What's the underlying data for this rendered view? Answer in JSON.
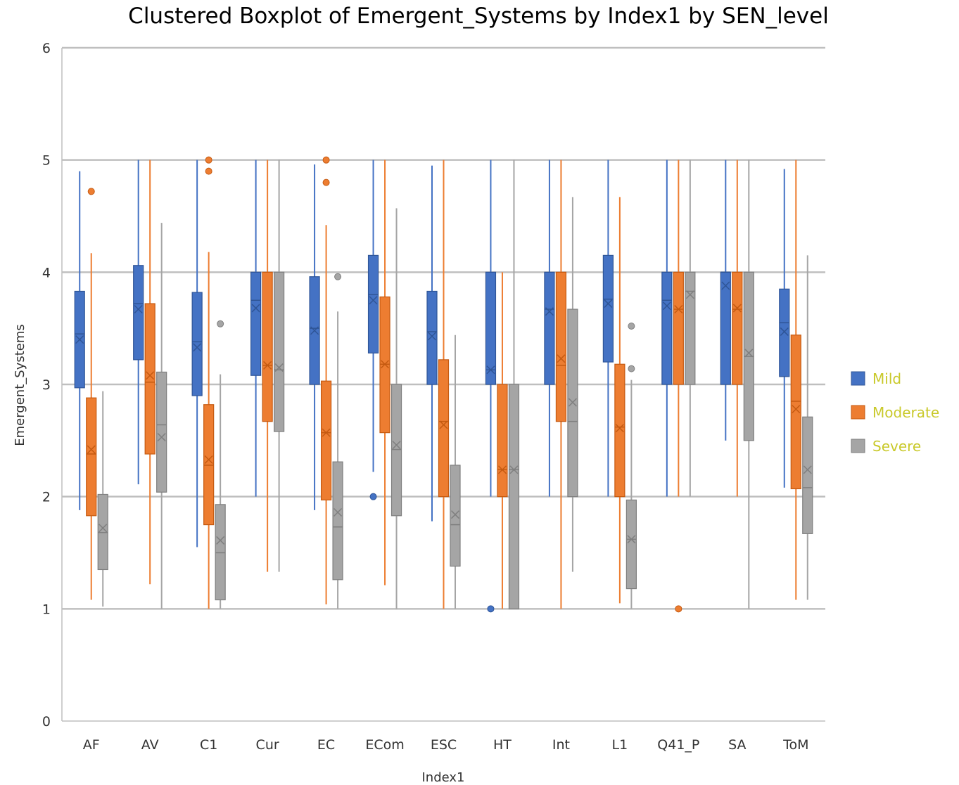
{
  "chart_data": {
    "type": "boxplot",
    "title": "Clustered Boxplot of Emergent_Systems by Index1 by SEN_level",
    "xlabel": "Index1",
    "ylabel": "Emergent_Systems",
    "ylim": [
      0,
      6
    ],
    "yticks": [
      "0",
      "1",
      "2",
      "3",
      "4",
      "5",
      "6"
    ],
    "grid": true,
    "legend_position": "right",
    "legend_text_color": "#c9c92a",
    "categories": [
      "AF",
      "AV",
      "C1",
      "Cur",
      "EC",
      "ECom",
      "ESC",
      "HT",
      "Int",
      "L1",
      "Q41_P",
      "SA",
      "ToM"
    ],
    "series": [
      {
        "name": "Mild",
        "color": "#4472c4",
        "edge": "#2f5597",
        "boxes": [
          {
            "min": 1.88,
            "q1": 2.97,
            "median": 3.45,
            "q3": 3.83,
            "max": 4.9,
            "mean": 3.4,
            "outliers": []
          },
          {
            "min": 2.11,
            "q1": 3.22,
            "median": 3.72,
            "q3": 4.06,
            "max": 5.0,
            "mean": 3.67,
            "outliers": []
          },
          {
            "min": 1.55,
            "q1": 2.9,
            "median": 3.38,
            "q3": 3.82,
            "max": 5.0,
            "mean": 3.33,
            "outliers": []
          },
          {
            "min": 2.0,
            "q1": 3.08,
            "median": 3.75,
            "q3": 4.0,
            "max": 5.0,
            "mean": 3.68,
            "outliers": []
          },
          {
            "min": 1.88,
            "q1": 3.0,
            "median": 3.5,
            "q3": 3.96,
            "max": 4.96,
            "mean": 3.48,
            "outliers": []
          },
          {
            "min": 2.22,
            "q1": 3.28,
            "median": 3.8,
            "q3": 4.15,
            "max": 5.0,
            "mean": 3.75,
            "outliers": [
              2.0
            ]
          },
          {
            "min": 1.78,
            "q1": 3.0,
            "median": 3.47,
            "q3": 3.83,
            "max": 4.95,
            "mean": 3.43,
            "outliers": []
          },
          {
            "min": 2.0,
            "q1": 3.0,
            "median": 3.13,
            "q3": 4.0,
            "max": 5.0,
            "mean": 3.13,
            "outliers": [
              1.0
            ]
          },
          {
            "min": 2.0,
            "q1": 3.0,
            "median": 3.67,
            "q3": 4.0,
            "max": 5.0,
            "mean": 3.65,
            "outliers": []
          },
          {
            "min": 2.0,
            "q1": 3.2,
            "median": 3.76,
            "q3": 4.15,
            "max": 5.0,
            "mean": 3.72,
            "outliers": []
          },
          {
            "min": 2.0,
            "q1": 3.0,
            "median": 3.75,
            "q3": 4.0,
            "max": 5.0,
            "mean": 3.7,
            "outliers": []
          },
          {
            "min": 2.5,
            "q1": 3.0,
            "median": 4.0,
            "q3": 4.0,
            "max": 5.0,
            "mean": 3.88,
            "outliers": []
          },
          {
            "min": 2.08,
            "q1": 3.07,
            "median": 3.55,
            "q3": 3.85,
            "max": 4.92,
            "mean": 3.47,
            "outliers": []
          }
        ]
      },
      {
        "name": "Moderate",
        "color": "#ed7d31",
        "edge": "#c55a11",
        "boxes": [
          {
            "min": 1.08,
            "q1": 1.83,
            "median": 2.38,
            "q3": 2.88,
            "max": 4.17,
            "mean": 2.42,
            "outliers": [
              4.72
            ]
          },
          {
            "min": 1.22,
            "q1": 2.38,
            "median": 3.02,
            "q3": 3.72,
            "max": 5.0,
            "mean": 3.08,
            "outliers": []
          },
          {
            "min": 1.0,
            "q1": 1.75,
            "median": 2.28,
            "q3": 2.82,
            "max": 4.18,
            "mean": 2.33,
            "outliers": [
              5.0,
              4.9
            ]
          },
          {
            "min": 1.33,
            "q1": 2.67,
            "median": 3.17,
            "q3": 4.0,
            "max": 5.0,
            "mean": 3.17,
            "outliers": []
          },
          {
            "min": 1.04,
            "q1": 1.97,
            "median": 2.57,
            "q3": 3.03,
            "max": 4.42,
            "mean": 2.57,
            "outliers": [
              5.0,
              4.8
            ]
          },
          {
            "min": 1.21,
            "q1": 2.57,
            "median": 3.18,
            "q3": 3.78,
            "max": 5.0,
            "mean": 3.18,
            "outliers": []
          },
          {
            "min": 1.0,
            "q1": 2.0,
            "median": 2.67,
            "q3": 3.22,
            "max": 5.0,
            "mean": 2.64,
            "outliers": []
          },
          {
            "min": 1.0,
            "q1": 2.0,
            "median": 2.24,
            "q3": 3.0,
            "max": 4.0,
            "mean": 2.24,
            "outliers": []
          },
          {
            "min": 1.0,
            "q1": 2.67,
            "median": 3.17,
            "q3": 4.0,
            "max": 5.0,
            "mean": 3.23,
            "outliers": []
          },
          {
            "min": 1.05,
            "q1": 2.0,
            "median": 2.62,
            "q3": 3.18,
            "max": 4.67,
            "mean": 2.61,
            "outliers": []
          },
          {
            "min": 2.0,
            "q1": 3.0,
            "median": 3.67,
            "q3": 4.0,
            "max": 5.0,
            "mean": 3.67,
            "outliers": [
              1.0
            ]
          },
          {
            "min": 2.0,
            "q1": 3.0,
            "median": 3.67,
            "q3": 4.0,
            "max": 5.0,
            "mean": 3.68,
            "outliers": []
          },
          {
            "min": 1.08,
            "q1": 2.07,
            "median": 2.85,
            "q3": 3.44,
            "max": 5.0,
            "mean": 2.78,
            "outliers": []
          }
        ]
      },
      {
        "name": "Severe",
        "color": "#a5a5a5",
        "edge": "#7f7f7f",
        "boxes": [
          {
            "min": 1.02,
            "q1": 1.35,
            "median": 1.68,
            "q3": 2.02,
            "max": 2.94,
            "mean": 1.72,
            "outliers": []
          },
          {
            "min": 1.0,
            "q1": 2.04,
            "median": 2.64,
            "q3": 3.11,
            "max": 4.44,
            "mean": 2.53,
            "outliers": []
          },
          {
            "min": 1.0,
            "q1": 1.08,
            "median": 1.5,
            "q3": 1.93,
            "max": 3.09,
            "mean": 1.61,
            "outliers": [
              3.54
            ]
          },
          {
            "min": 1.33,
            "q1": 2.58,
            "median": 3.13,
            "q3": 4.0,
            "max": 5.0,
            "mean": 3.15,
            "outliers": []
          },
          {
            "min": 1.0,
            "q1": 1.26,
            "median": 1.73,
            "q3": 2.31,
            "max": 3.65,
            "mean": 1.86,
            "outliers": [
              3.96
            ]
          },
          {
            "min": 1.0,
            "q1": 1.83,
            "median": 2.42,
            "q3": 3.0,
            "max": 4.57,
            "mean": 2.46,
            "outliers": []
          },
          {
            "min": 1.0,
            "q1": 1.38,
            "median": 1.75,
            "q3": 2.28,
            "max": 3.44,
            "mean": 1.84,
            "outliers": []
          },
          {
            "min": 1.0,
            "q1": 1.0,
            "median": 2.24,
            "q3": 3.0,
            "max": 5.0,
            "mean": 2.24,
            "outliers": []
          },
          {
            "min": 1.33,
            "q1": 2.0,
            "median": 2.67,
            "q3": 3.67,
            "max": 4.67,
            "mean": 2.84,
            "outliers": []
          },
          {
            "min": 1.0,
            "q1": 1.18,
            "median": 1.62,
            "q3": 1.97,
            "max": 3.04,
            "mean": 1.62,
            "outliers": [
              3.52,
              3.14
            ]
          },
          {
            "min": 2.0,
            "q1": 3.0,
            "median": 3.83,
            "q3": 4.0,
            "max": 5.0,
            "mean": 3.8,
            "outliers": []
          },
          {
            "min": 1.0,
            "q1": 2.5,
            "median": 3.25,
            "q3": 4.0,
            "max": 5.0,
            "mean": 3.28,
            "outliers": []
          },
          {
            "min": 1.08,
            "q1": 1.67,
            "median": 2.08,
            "q3": 2.71,
            "max": 4.15,
            "mean": 2.24,
            "outliers": []
          }
        ]
      }
    ]
  }
}
